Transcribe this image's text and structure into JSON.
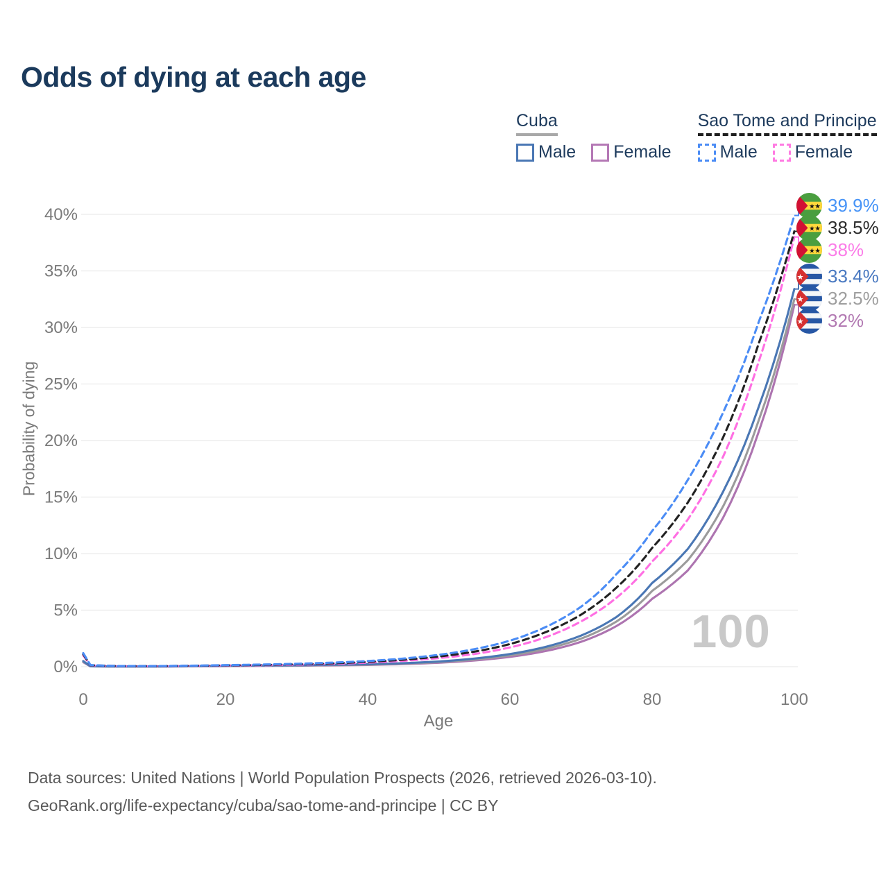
{
  "title": "Odds of dying at each age",
  "legend": {
    "groups": [
      {
        "label": "Cuba",
        "line_style": "solid",
        "underline_color": "#a8a8a8",
        "items": [
          {
            "label": "Male",
            "color": "#4a77b4"
          },
          {
            "label": "Female",
            "color": "#b478b5"
          }
        ]
      },
      {
        "label": "Sao Tome and Principe",
        "line_style": "dashed",
        "underline_color": "#1f1f1f",
        "items": [
          {
            "label": "Male",
            "color": "#4b8cf5"
          },
          {
            "label": "Female",
            "color": "#ff7ae2"
          }
        ]
      }
    ]
  },
  "chart_data": {
    "type": "line",
    "title": "Odds of dying at each age",
    "xlabel": "Age",
    "ylabel": "Probability of dying",
    "xlim": [
      0,
      100
    ],
    "ylim": [
      0,
      40
    ],
    "x_ticks": [
      0,
      20,
      40,
      60,
      80,
      100
    ],
    "y_ticks": [
      0,
      5,
      10,
      15,
      20,
      25,
      30,
      35,
      40
    ],
    "grid": "horizontal",
    "legend_position": "top-right",
    "watermark": "100",
    "x": [
      0,
      1,
      5,
      10,
      15,
      20,
      25,
      30,
      35,
      40,
      45,
      50,
      55,
      60,
      65,
      70,
      75,
      80,
      85,
      90,
      95,
      100
    ],
    "series": [
      {
        "id": "sao-tome-male",
        "name": "Sao Tome and Principe Male",
        "dash": true,
        "color": "#4b8cf5",
        "label_color": "#4693f7",
        "end_label": "39.9%",
        "flag": "sao-tome",
        "values": [
          1.2,
          0.15,
          0.06,
          0.05,
          0.09,
          0.14,
          0.19,
          0.26,
          0.36,
          0.5,
          0.72,
          1.05,
          1.55,
          2.3,
          3.5,
          5.3,
          8.2,
          12.0,
          16.5,
          22.5,
          30.5,
          39.9
        ]
      },
      {
        "id": "sao-tome-both",
        "name": "Sao Tome and Principe Both sexes",
        "dash": true,
        "color": "#222222",
        "label_color": "#2d2d2d",
        "end_label": "38.5%",
        "flag": "sao-tome",
        "values": [
          1.1,
          0.13,
          0.055,
          0.045,
          0.08,
          0.12,
          0.16,
          0.22,
          0.3,
          0.43,
          0.62,
          0.9,
          1.33,
          2.0,
          3.05,
          4.6,
          7.0,
          10.5,
          14.5,
          20.3,
          28.6,
          38.5
        ]
      },
      {
        "id": "sao-tome-female",
        "name": "Sao Tome and Principe Female",
        "dash": true,
        "color": "#ff6fe3",
        "label_color": "#fb7ce8",
        "end_label": "38%",
        "flag": "sao-tome",
        "values": [
          1.0,
          0.12,
          0.05,
          0.04,
          0.07,
          0.1,
          0.13,
          0.18,
          0.25,
          0.36,
          0.52,
          0.76,
          1.12,
          1.7,
          2.6,
          4.0,
          6.1,
          9.3,
          13.0,
          18.6,
          27.0,
          38.0
        ]
      },
      {
        "id": "cuba-male",
        "name": "Cuba Male",
        "dash": false,
        "color": "#4a77b4",
        "label_color": "#4878c0",
        "end_label": "33.4%",
        "flag": "cuba",
        "values": [
          0.5,
          0.04,
          0.02,
          0.02,
          0.05,
          0.09,
          0.11,
          0.13,
          0.17,
          0.22,
          0.31,
          0.46,
          0.72,
          1.12,
          1.75,
          2.75,
          4.4,
          7.4,
          10.4,
          15.5,
          23.0,
          33.4
        ]
      },
      {
        "id": "cuba-both",
        "name": "Cuba Both sexes",
        "dash": false,
        "color": "#9b9b9b",
        "label_color": "#9e9e9e",
        "end_label": "32.5%",
        "flag": "cuba",
        "values": [
          0.45,
          0.035,
          0.018,
          0.018,
          0.04,
          0.07,
          0.09,
          0.11,
          0.15,
          0.19,
          0.27,
          0.41,
          0.64,
          1.0,
          1.57,
          2.48,
          4.0,
          6.7,
          9.4,
          14.2,
          21.8,
          32.5
        ]
      },
      {
        "id": "cuba-female",
        "name": "Cuba Female",
        "dash": false,
        "color": "#ad74b0",
        "label_color": "#b279b2",
        "end_label": "32%",
        "flag": "cuba",
        "values": [
          0.4,
          0.03,
          0.016,
          0.016,
          0.03,
          0.05,
          0.07,
          0.09,
          0.12,
          0.16,
          0.23,
          0.35,
          0.55,
          0.87,
          1.38,
          2.2,
          3.6,
          6.0,
          8.5,
          13.2,
          20.8,
          32.0
        ]
      }
    ]
  },
  "footer": {
    "line1": "Data sources: United Nations | World Population Prospects (2026, retrieved 2026-03-10).",
    "line2": "GeoRank.org/life-expectancy/cuba/sao-tome-and-principe | CC BY"
  }
}
